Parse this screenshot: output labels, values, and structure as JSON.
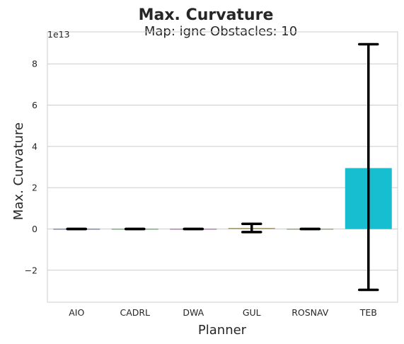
{
  "chart_data": {
    "type": "bar",
    "suptitle": "Max. Curvature",
    "title": "Map: ignc Obstacles: 10",
    "xlabel": "Planner",
    "ylabel": "Max. Curvature",
    "offset_text": "1e13",
    "categories": [
      "AIO",
      "CADRL",
      "DWA",
      "GUL",
      "ROSNAV",
      "TEB"
    ],
    "values": [
      0,
      0,
      0,
      0.05,
      0,
      2.95
    ],
    "error_low": [
      0,
      0,
      0,
      -0.15,
      0,
      -2.95
    ],
    "error_high": [
      0,
      0,
      0,
      0.25,
      0,
      8.95
    ],
    "ylim": [
      -3.55,
      9.55
    ],
    "yticks": [
      -2,
      0,
      2,
      4,
      6,
      8
    ],
    "ytick_labels": [
      "−2",
      "0",
      "2",
      "4",
      "6",
      "8"
    ],
    "grid": true,
    "bar_colors": [
      "#1f3b9e",
      "#2a7a2a",
      "#8a2a8a",
      "#a89a6e",
      "#4a7a2a",
      "#17becf"
    ],
    "errorbar_color": "#000000",
    "grid_color": "#cccccc"
  }
}
